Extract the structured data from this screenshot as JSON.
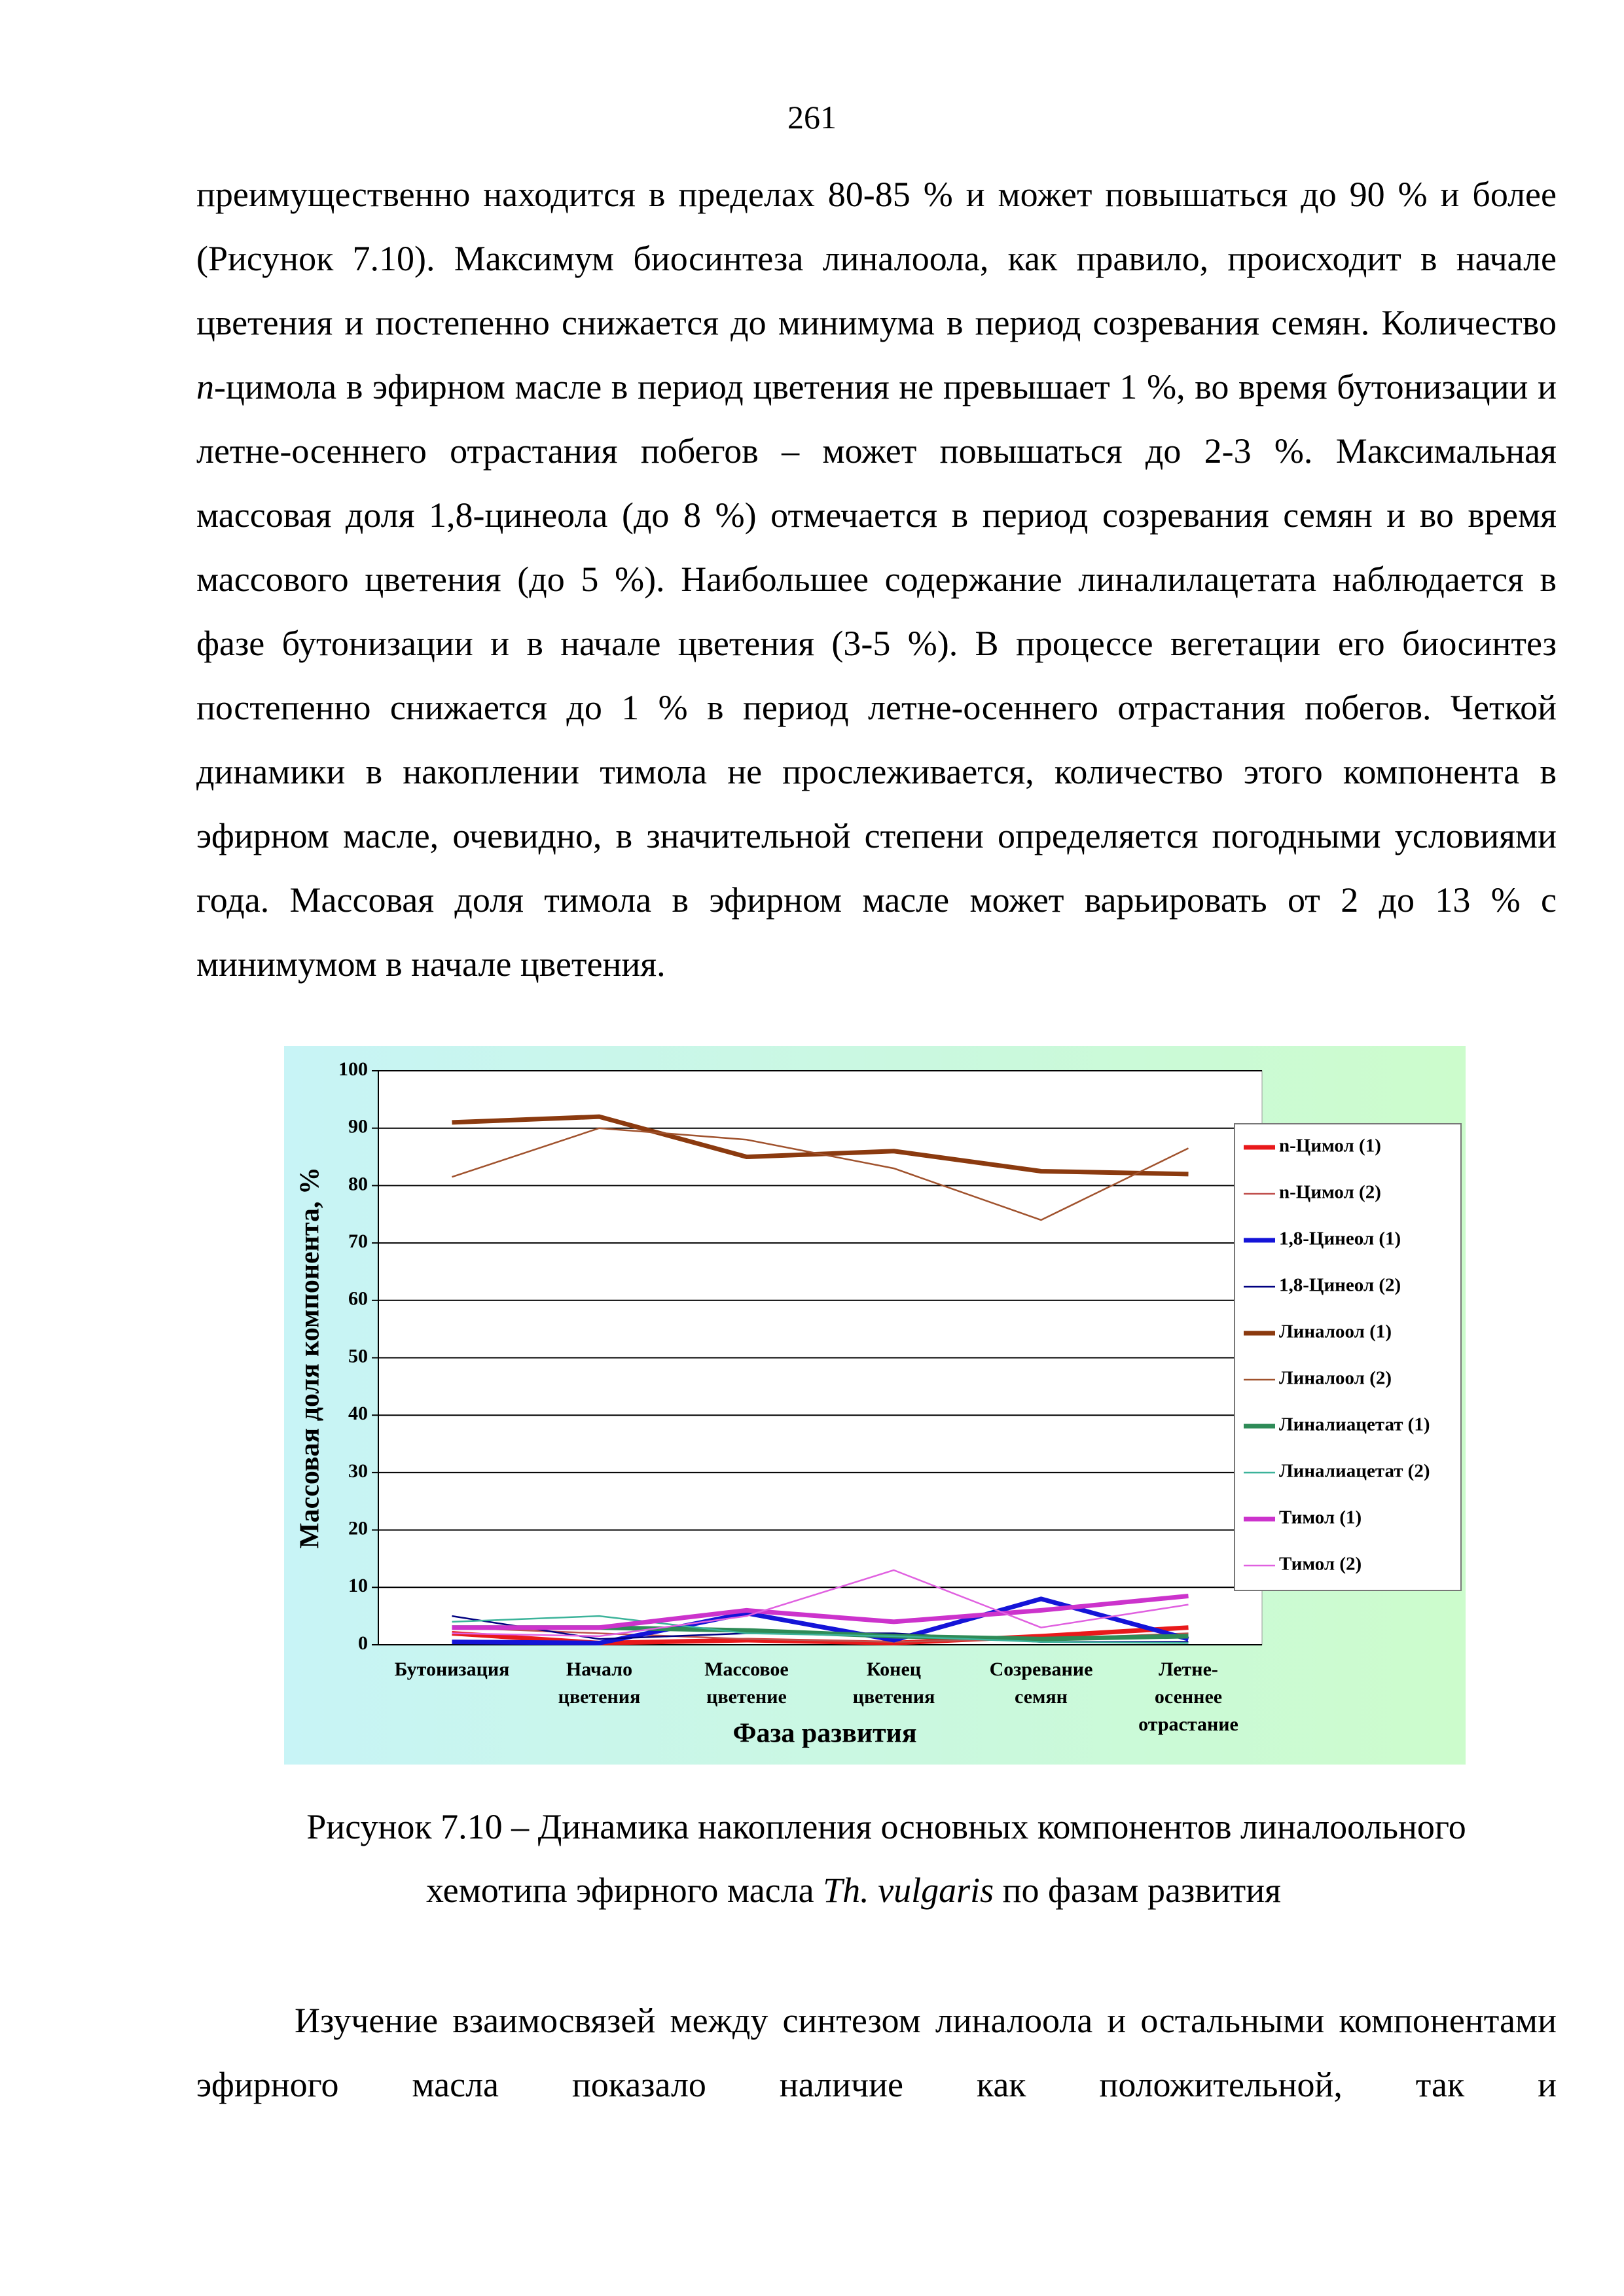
{
  "page_number": "261",
  "paragraphs": [
    [
      {
        "text": "преимущественно находится в пределах 80-85 % и может повышаться до 90 % и более (Рисунок 7.10). Максимум биосинтеза линалоола, как правило, происходит в начале цветения и постепенно снижается до минимума в период созревания семян. Количество ",
        "italic": false
      },
      {
        "text": "n",
        "italic": true
      },
      {
        "text": "-цимола в эфирном масле в период цветения не превышает 1 %, во время бутонизации и летне-осеннего отрастания побегов – может повышаться до 2-3 %. Максимальная массовая доля 1,8-цинеола (до 8 %) отмечается в период созревания семян и во время массового цветения (до 5 %). Наибольшее содержание линалилацетата наблюдается в фазе бутонизации и в начале цветения (3-5 %). В процессе вегетации его биосинтез постепенно снижается до 1 % в период летне-осеннего отрастания побегов. Четкой динамики в накоплении тимола не прослеживается, количество этого компонента в эфирном масле, очевидно, в значительной степени определяется погодными условиями года. Массовая доля тимола в эфирном масле может варьировать от 2 до 13 % с минимумом в начале цветения.",
        "italic": false
      }
    ],
    [
      {
        "text": "Изучение взаимосвязей между синтезом линалоола и остальными компонентами эфирного масла показало наличие как положительной, так и",
        "italic": false
      }
    ]
  ],
  "chart_data": {
    "type": "line",
    "ylabel": "Массовая доля компонента, %",
    "xlabel": "Фаза развития",
    "categories": [
      "Бутонизация",
      "Начало\nцветения",
      "Массовое\nцветение",
      "Конец\nцветения",
      "Созревание\nсемян",
      "Летне-\nосеннее\nотрастание"
    ],
    "ylim": [
      0,
      100
    ],
    "yticks": [
      0,
      10,
      20,
      30,
      40,
      50,
      60,
      70,
      80,
      90,
      100
    ],
    "grid": true,
    "legend": "right",
    "series": [
      {
        "name": "n-Цимол (1)",
        "color": "#e8191b",
        "width": "thick",
        "values": [
          2,
          0.3,
          0.8,
          0.3,
          1.5,
          3
        ]
      },
      {
        "name": "n-Цимол (2)",
        "color": "#c0504d",
        "width": "thin",
        "values": [
          3,
          2,
          1,
          0.5,
          1,
          2
        ]
      },
      {
        "name": "1,8-Цинеол (1)",
        "color": "#1414d8",
        "width": "thick",
        "values": [
          0.5,
          0.3,
          5.5,
          0.8,
          8,
          1
        ]
      },
      {
        "name": "1,8-Цинеол (2)",
        "color": "#000080",
        "width": "thin",
        "values": [
          5,
          1,
          2,
          2,
          0.5,
          0.5
        ]
      },
      {
        "name": "Линалоол (1)",
        "color": "#8b3a0f",
        "width": "thick",
        "values": [
          91,
          92,
          85,
          86,
          82.5,
          82
        ]
      },
      {
        "name": "Линалоол (2)",
        "color": "#a0522d",
        "width": "thin",
        "values": [
          81.5,
          90,
          88,
          83,
          74,
          86.5
        ]
      },
      {
        "name": "Линалиацетат (1)",
        "color": "#2e8b57",
        "width": "thick",
        "values": [
          3,
          3,
          2.5,
          1.5,
          1,
          1.5
        ]
      },
      {
        "name": "Линалиацетат (2)",
        "color": "#3cb39a",
        "width": "thin",
        "values": [
          4,
          5,
          2,
          1.5,
          0.5,
          0.3
        ]
      },
      {
        "name": "Тимол (1)",
        "color": "#cc33cc",
        "width": "thick",
        "values": [
          3,
          3,
          6,
          4,
          6,
          8.5
        ]
      },
      {
        "name": "Тимол (2)",
        "color": "#e060e0",
        "width": "thin",
        "values": [
          2,
          1.5,
          5,
          13,
          3,
          7
        ]
      }
    ]
  },
  "caption": [
    [
      {
        "text": "Рисунок 7.10 – Динамика накопления основных компонентов линалоольного",
        "italic": false
      }
    ],
    [
      {
        "text": "хемотипа эфирного масла ",
        "italic": false
      },
      {
        "text": "Th. vulgaris",
        "italic": true
      },
      {
        "text": " по фазам развития",
        "italic": false
      }
    ]
  ]
}
